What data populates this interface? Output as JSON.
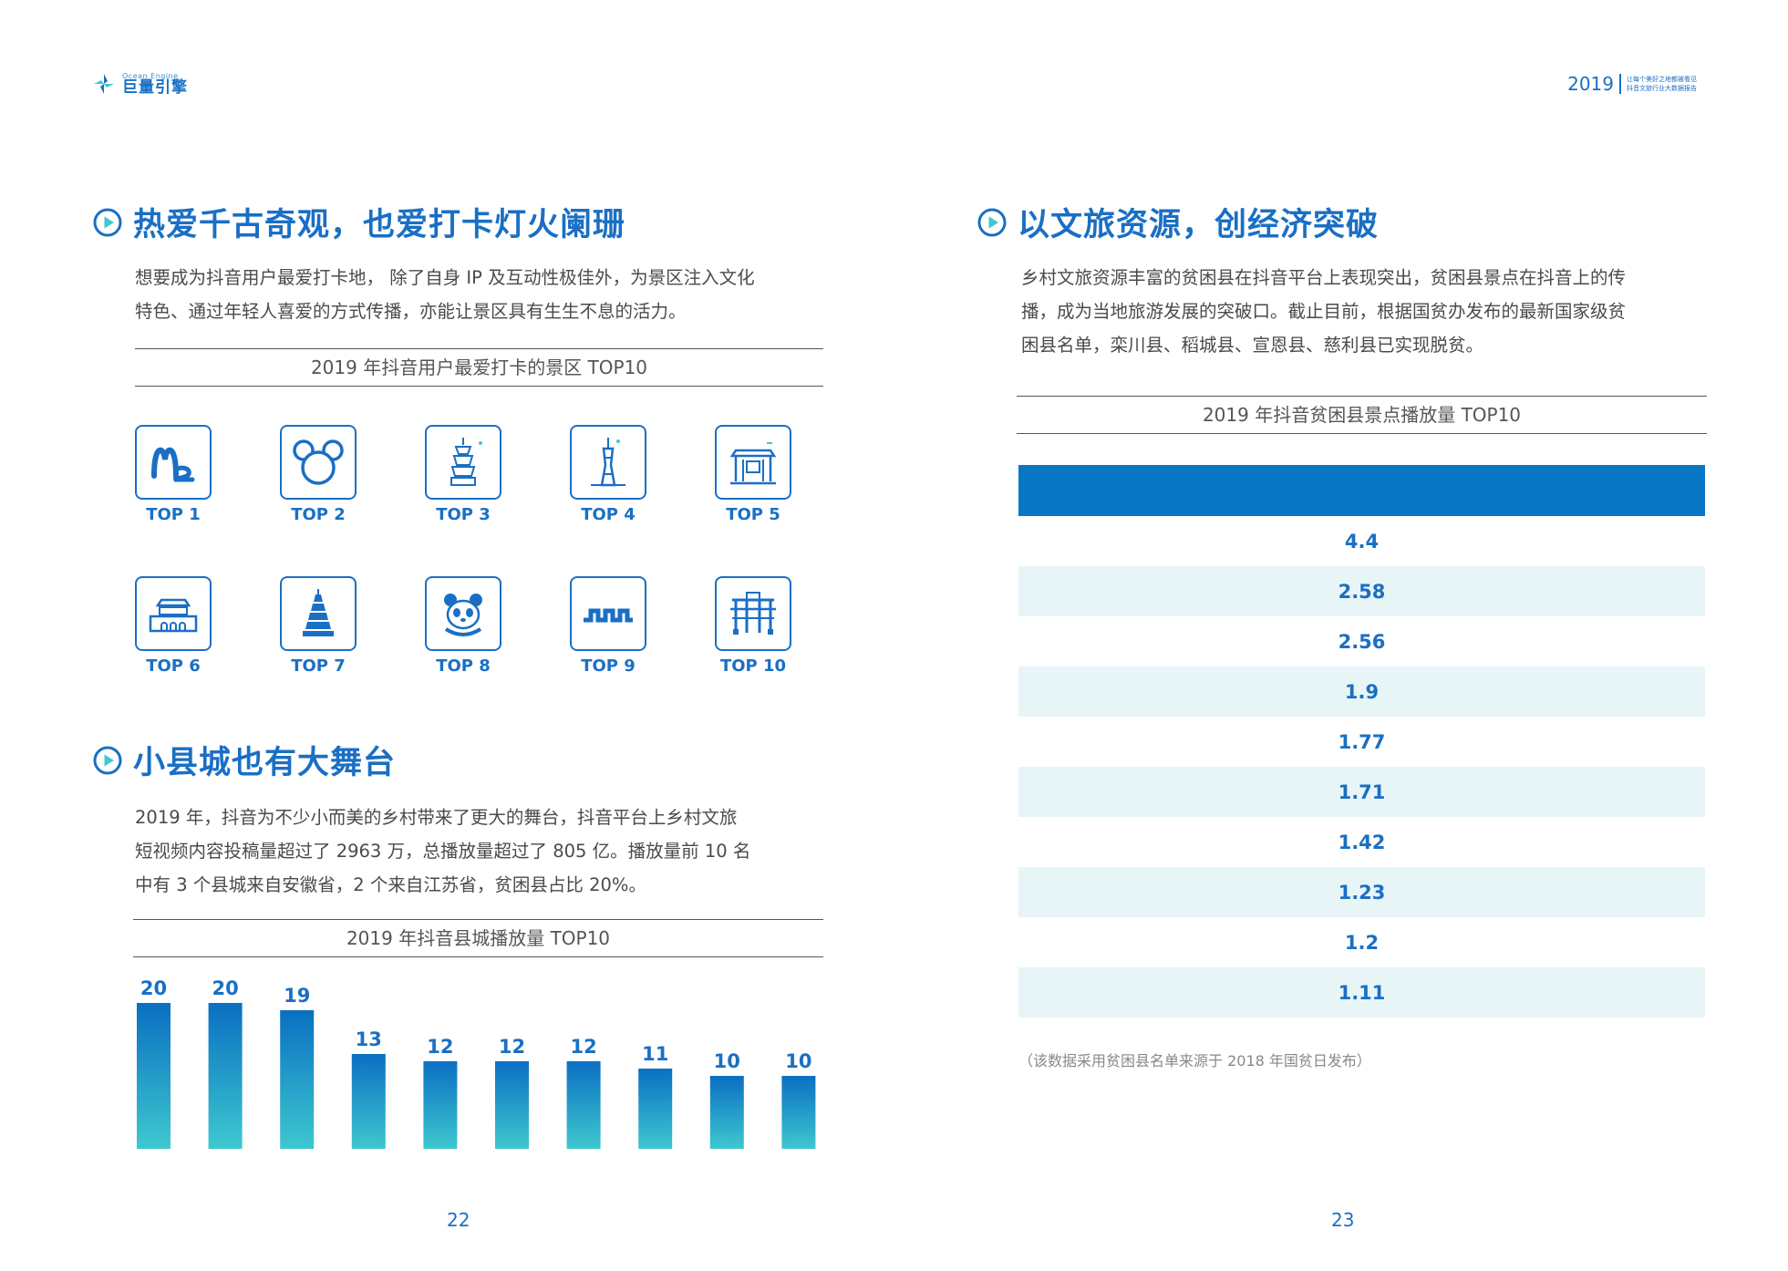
{
  "header": {
    "logo_en": "Ocean Engine",
    "logo_cn": "巨量引擎",
    "year": "2019",
    "subtitle_line1": "让每个美好之地都被看见",
    "subtitle_line2": "抖音文旅行业大数据报告"
  },
  "left": {
    "section1": {
      "title": "热爱千古奇观，也爱打卡灯火阑珊",
      "para_line1": "想要成为抖音用户最爱打卡地， 除了自身 IP 及互动性极佳外，为景区注入文化",
      "para_line2": "特色、通过年轻人喜爱的方式传播，亦能让景区具有生生不息的活力。",
      "caption": "2019 年抖音用户最爱打卡的景区 TOP10",
      "icons": [
        {
          "label": "TOP 1",
          "icon": "rollercoaster-icon"
        },
        {
          "label": "TOP 2",
          "icon": "mouse-ears-icon"
        },
        {
          "label": "TOP 3",
          "icon": "pagoda-icon"
        },
        {
          "label": "TOP 4",
          "icon": "tv-tower-icon"
        },
        {
          "label": "TOP 5",
          "icon": "gate-icon"
        },
        {
          "label": "TOP 6",
          "icon": "palace-icon"
        },
        {
          "label": "TOP 7",
          "icon": "tower-icon"
        },
        {
          "label": "TOP 8",
          "icon": "panda-icon"
        },
        {
          "label": "TOP 9",
          "icon": "great-wall-icon"
        },
        {
          "label": "TOP 10",
          "icon": "archway-icon"
        }
      ]
    },
    "section2": {
      "title": "小县城也有大舞台",
      "para_line1": "2019 年，抖音为不少小而美的乡村带来了更大的舞台，抖音平台上乡村文旅",
      "para_line2": "短视频内容投稿量超过了 2963 万，总播放量超过了 805 亿。播放量前 10 名",
      "para_line3": "中有 3 个县城来自安徽省，2 个来自江苏省，贫困县占比 20%。",
      "caption": "2019 年抖音县城播放量 TOP10"
    },
    "page_number": "22"
  },
  "chart_data": {
    "type": "bar",
    "title": "2019 年抖音县城播放量 TOP10",
    "categories": [
      "",
      "",
      "",
      "",
      "",
      "",
      "",
      "",
      "",
      ""
    ],
    "values": [
      20,
      20,
      19,
      13,
      12,
      12,
      12,
      11,
      10,
      10
    ],
    "value_labels": [
      "20",
      "20",
      "19",
      "13",
      "12",
      "12",
      "12",
      "11",
      "10",
      "10"
    ],
    "ylim": [
      0,
      20
    ],
    "grid": false,
    "colors": {
      "top": "#0a6fc2",
      "bottom": "#3ec8cf"
    }
  },
  "right": {
    "section": {
      "title": "以文旅资源，创经济突破",
      "para_line1": "乡村文旅资源丰富的贫困县在抖音平台上表现突出，贫困县景点在抖音上的传",
      "para_line2": "播，成为当地旅游发展的突破口。截止目前，根据国贫办发布的最新国家级贫",
      "para_line3": "困县名单，栾川县、稻城县、宣恩县、慈利县已实现脱贫。",
      "caption": "2019 年抖音贫困县景点播放量 TOP10"
    },
    "table": {
      "header_color": "#0a76c6",
      "values": [
        "4.4",
        "2.58",
        "2.56",
        "1.9",
        "1.77",
        "1.71",
        "1.42",
        "1.23",
        "1.2",
        "1.11"
      ]
    },
    "note": "（该数据采用贫困县名单来源于 2018 年国贫日发布）",
    "page_number": "23"
  },
  "colors": {
    "accent": "#1a6fc4",
    "row_alt": "#e8f5f7"
  }
}
